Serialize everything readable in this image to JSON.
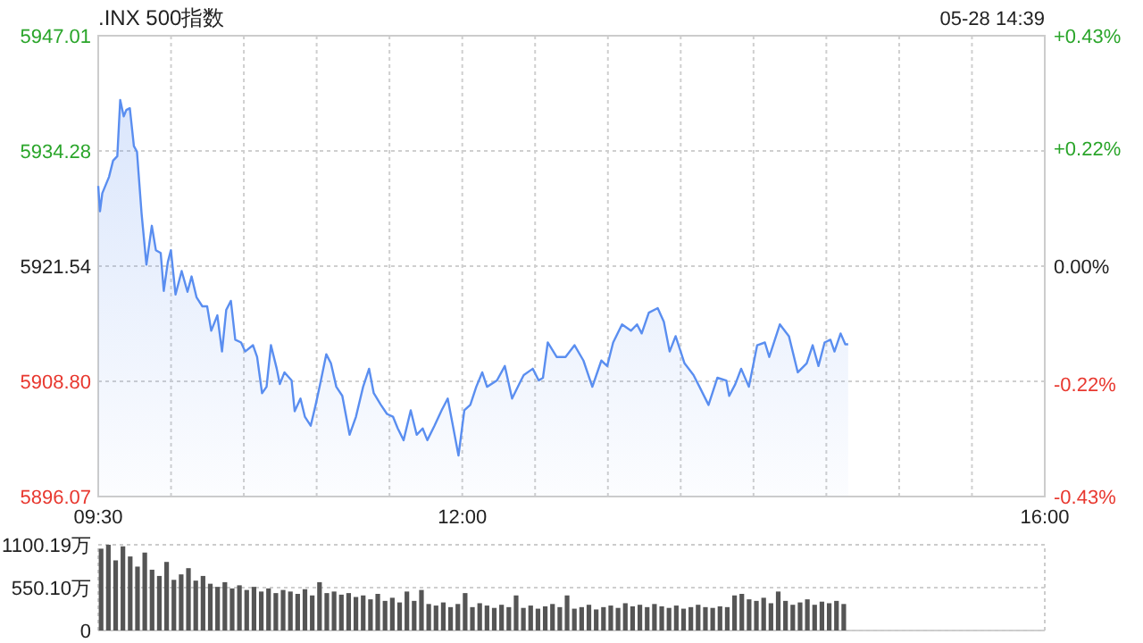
{
  "chart_data": [
    {
      "type": "area",
      "title": ".INX 500指数",
      "annotations": [
        "05-28 14:39"
      ],
      "x": [
        9.5,
        9.512,
        9.528,
        9.574,
        9.602,
        9.631,
        9.651,
        9.675,
        9.693,
        9.717,
        9.745,
        9.766,
        9.798,
        9.831,
        9.868,
        9.896,
        9.929,
        9.95,
        9.978,
        9.999,
        10.031,
        10.073,
        10.113,
        10.141,
        10.175,
        10.215,
        10.248,
        10.276,
        10.318,
        10.35,
        10.379,
        10.411,
        10.441,
        10.481,
        10.509,
        10.563,
        10.591,
        10.625,
        10.656,
        10.686,
        10.726,
        10.747,
        10.779,
        10.828,
        10.849,
        10.889,
        10.919,
        10.959,
        10.993,
        11.024,
        11.066,
        11.098,
        11.135,
        11.176,
        11.226,
        11.27,
        11.319,
        11.36,
        11.392,
        11.441,
        11.483,
        11.524,
        11.557,
        11.597,
        11.646,
        11.687,
        11.728,
        11.76,
        11.809,
        11.858,
        11.9,
        11.932,
        11.974,
        12.014,
        12.055,
        12.096,
        12.137,
        12.17,
        12.238,
        12.292,
        12.342,
        12.403,
        12.422,
        12.484,
        12.525,
        12.554,
        12.587,
        12.648,
        12.709,
        12.771,
        12.832,
        12.893,
        12.955,
        12.995,
        13.036,
        13.097,
        13.158,
        13.2,
        13.232,
        13.281,
        13.342,
        13.384,
        13.424,
        13.465,
        13.526,
        13.588,
        13.629,
        13.691,
        13.752,
        13.813,
        13.833,
        13.875,
        13.915,
        13.968,
        14.025,
        14.078,
        14.108,
        14.181,
        14.243,
        14.304,
        14.365,
        14.406,
        14.446,
        14.488,
        14.528,
        14.556,
        14.598,
        14.63,
        14.65
      ],
      "series": [
        {
          "color": "#5a8ef0",
          "values": [
            5930.4,
            5927.6,
            5929.6,
            5931.4,
            5933.2,
            5933.7,
            5939.9,
            5938.1,
            5938.8,
            5939.0,
            5934.8,
            5934.2,
            5927.3,
            5921.7,
            5926.0,
            5923.3,
            5923.0,
            5918.8,
            5922.0,
            5923.3,
            5918.4,
            5921.0,
            5918.7,
            5920.4,
            5918.1,
            5917.1,
            5917.1,
            5914.4,
            5916.1,
            5912.1,
            5916.7,
            5917.7,
            5913.4,
            5913.1,
            5912.1,
            5912.8,
            5911.5,
            5907.5,
            5908.2,
            5912.8,
            5910.2,
            5908.5,
            5909.8,
            5908.9,
            5905.5,
            5906.9,
            5904.9,
            5903.9,
            5906.2,
            5908.5,
            5911.8,
            5910.8,
            5908.2,
            5907.2,
            5902.9,
            5904.9,
            5908.2,
            5910.2,
            5907.5,
            5906.2,
            5905.2,
            5904.9,
            5903.6,
            5902.3,
            5905.6,
            5902.9,
            5903.6,
            5902.3,
            5903.9,
            5905.6,
            5906.9,
            5904.2,
            5900.6,
            5905.6,
            5906.2,
            5908.2,
            5909.8,
            5908.2,
            5908.9,
            5910.5,
            5906.9,
            5908.9,
            5909.5,
            5910.2,
            5908.9,
            5909.2,
            5913.1,
            5911.5,
            5911.5,
            5912.8,
            5911.1,
            5908.2,
            5911.1,
            5910.5,
            5913.1,
            5915.1,
            5914.4,
            5915.1,
            5914.1,
            5916.4,
            5916.9,
            5915.4,
            5912.1,
            5913.8,
            5910.8,
            5909.5,
            5908.2,
            5906.2,
            5909.2,
            5908.9,
            5907.2,
            5908.5,
            5910.2,
            5908.2,
            5912.8,
            5913.1,
            5911.5,
            5915.1,
            5913.8,
            5909.8,
            5910.8,
            5912.8,
            5910.5,
            5913.1,
            5913.4,
            5912.1,
            5914.1,
            5912.9,
            5912.9
          ]
        }
      ],
      "xlim": [
        9.5,
        16
      ],
      "xticks": [
        {
          "value": 9.5,
          "label": "09:30"
        },
        {
          "value": 10,
          "label": null
        },
        {
          "value": 10.5,
          "label": null
        },
        {
          "value": 11,
          "label": null
        },
        {
          "value": 11.5,
          "label": null
        },
        {
          "value": 12,
          "label": "12:00"
        },
        {
          "value": 12.5,
          "label": null
        },
        {
          "value": 13,
          "label": null
        },
        {
          "value": 13.5,
          "label": null
        },
        {
          "value": 14,
          "label": null
        },
        {
          "value": 14.5,
          "label": null
        },
        {
          "value": 15,
          "label": null
        },
        {
          "value": 15.5,
          "label": null
        },
        {
          "value": 16,
          "label": "16:00"
        }
      ],
      "ylim": [
        5896.07,
        5947.01
      ],
      "yticks": [
        5896.07,
        {
          "value": 5908.8,
          "label": "5908.80"
        },
        5921.54,
        5934.28,
        5947.01
      ],
      "y2lim": [
        -0.43,
        0.43
      ],
      "y2ticks": [
        {
          "value": -0.43,
          "label": "-0.43%"
        },
        {
          "value": -0.22,
          "label": "-0.22%"
        },
        {
          "value": 0,
          "label": "0.00%"
        },
        {
          "value": 0.22,
          "label": "+0.22%"
        },
        {
          "value": 0.43,
          "label": "+0.43%"
        }
      ],
      "grid": true
    },
    {
      "type": "bar",
      "color": "#555555",
      "x": [
        9.5,
        9.55,
        9.6,
        9.65,
        9.7,
        9.75,
        9.8,
        9.85,
        9.9,
        9.95,
        10,
        10.05,
        10.1,
        10.15,
        10.2,
        10.25,
        10.3,
        10.35,
        10.4,
        10.45,
        10.5,
        10.55,
        10.6,
        10.65,
        10.7,
        10.75,
        10.8,
        10.85,
        10.9,
        10.95,
        11,
        11.05,
        11.1,
        11.15,
        11.2,
        11.25,
        11.3,
        11.35,
        11.4,
        11.45,
        11.5,
        11.55,
        11.6,
        11.65,
        11.7,
        11.75,
        11.8,
        11.85,
        11.9,
        11.95,
        12,
        12.05,
        12.1,
        12.15,
        12.2,
        12.25,
        12.3,
        12.35,
        12.4,
        12.45,
        12.5,
        12.55,
        12.6,
        12.65,
        12.7,
        12.75,
        12.8,
        12.85,
        12.9,
        12.95,
        13,
        13.05,
        13.1,
        13.15,
        13.2,
        13.25,
        13.3,
        13.35,
        13.4,
        13.45,
        13.5,
        13.55,
        13.6,
        13.65,
        13.7,
        13.75,
        13.8,
        13.85,
        13.9,
        13.95,
        14,
        14.05,
        14.1,
        14.15,
        14.2,
        14.25,
        14.3,
        14.35,
        14.4,
        14.45,
        14.5,
        14.55,
        14.6
      ],
      "values": [
        1050,
        1100,
        900,
        1080,
        950,
        820,
        1000,
        780,
        700,
        880,
        650,
        720,
        800,
        640,
        700,
        600,
        560,
        620,
        540,
        580,
        520,
        560,
        500,
        540,
        480,
        520,
        500,
        470,
        530,
        450,
        620,
        480,
        500,
        460,
        480,
        430,
        450,
        400,
        470,
        380,
        420,
        360,
        500,
        380,
        520,
        340,
        320,
        360,
        300,
        340,
        480,
        300,
        350,
        320,
        290,
        330,
        300,
        450,
        290,
        320,
        280,
        310,
        340,
        300,
        450,
        280,
        300,
        330,
        270,
        300,
        320,
        290,
        350,
        310,
        330,
        300,
        340,
        310,
        290,
        320,
        280,
        300,
        330,
        300,
        290,
        310,
        300,
        450,
        470,
        400,
        380,
        420,
        350,
        500,
        380,
        330,
        360,
        400,
        330,
        370,
        350,
        380,
        340
      ],
      "xlim": [
        9.5,
        16
      ],
      "ylim": [
        0,
        1100.19
      ],
      "yticks": [
        0,
        {
          "value": 550.1,
          "label": "550.10万"
        },
        {
          "value": 1100.19,
          "label": "1100.19万"
        }
      ],
      "grid": "y",
      "tick_labels": "y"
    }
  ]
}
